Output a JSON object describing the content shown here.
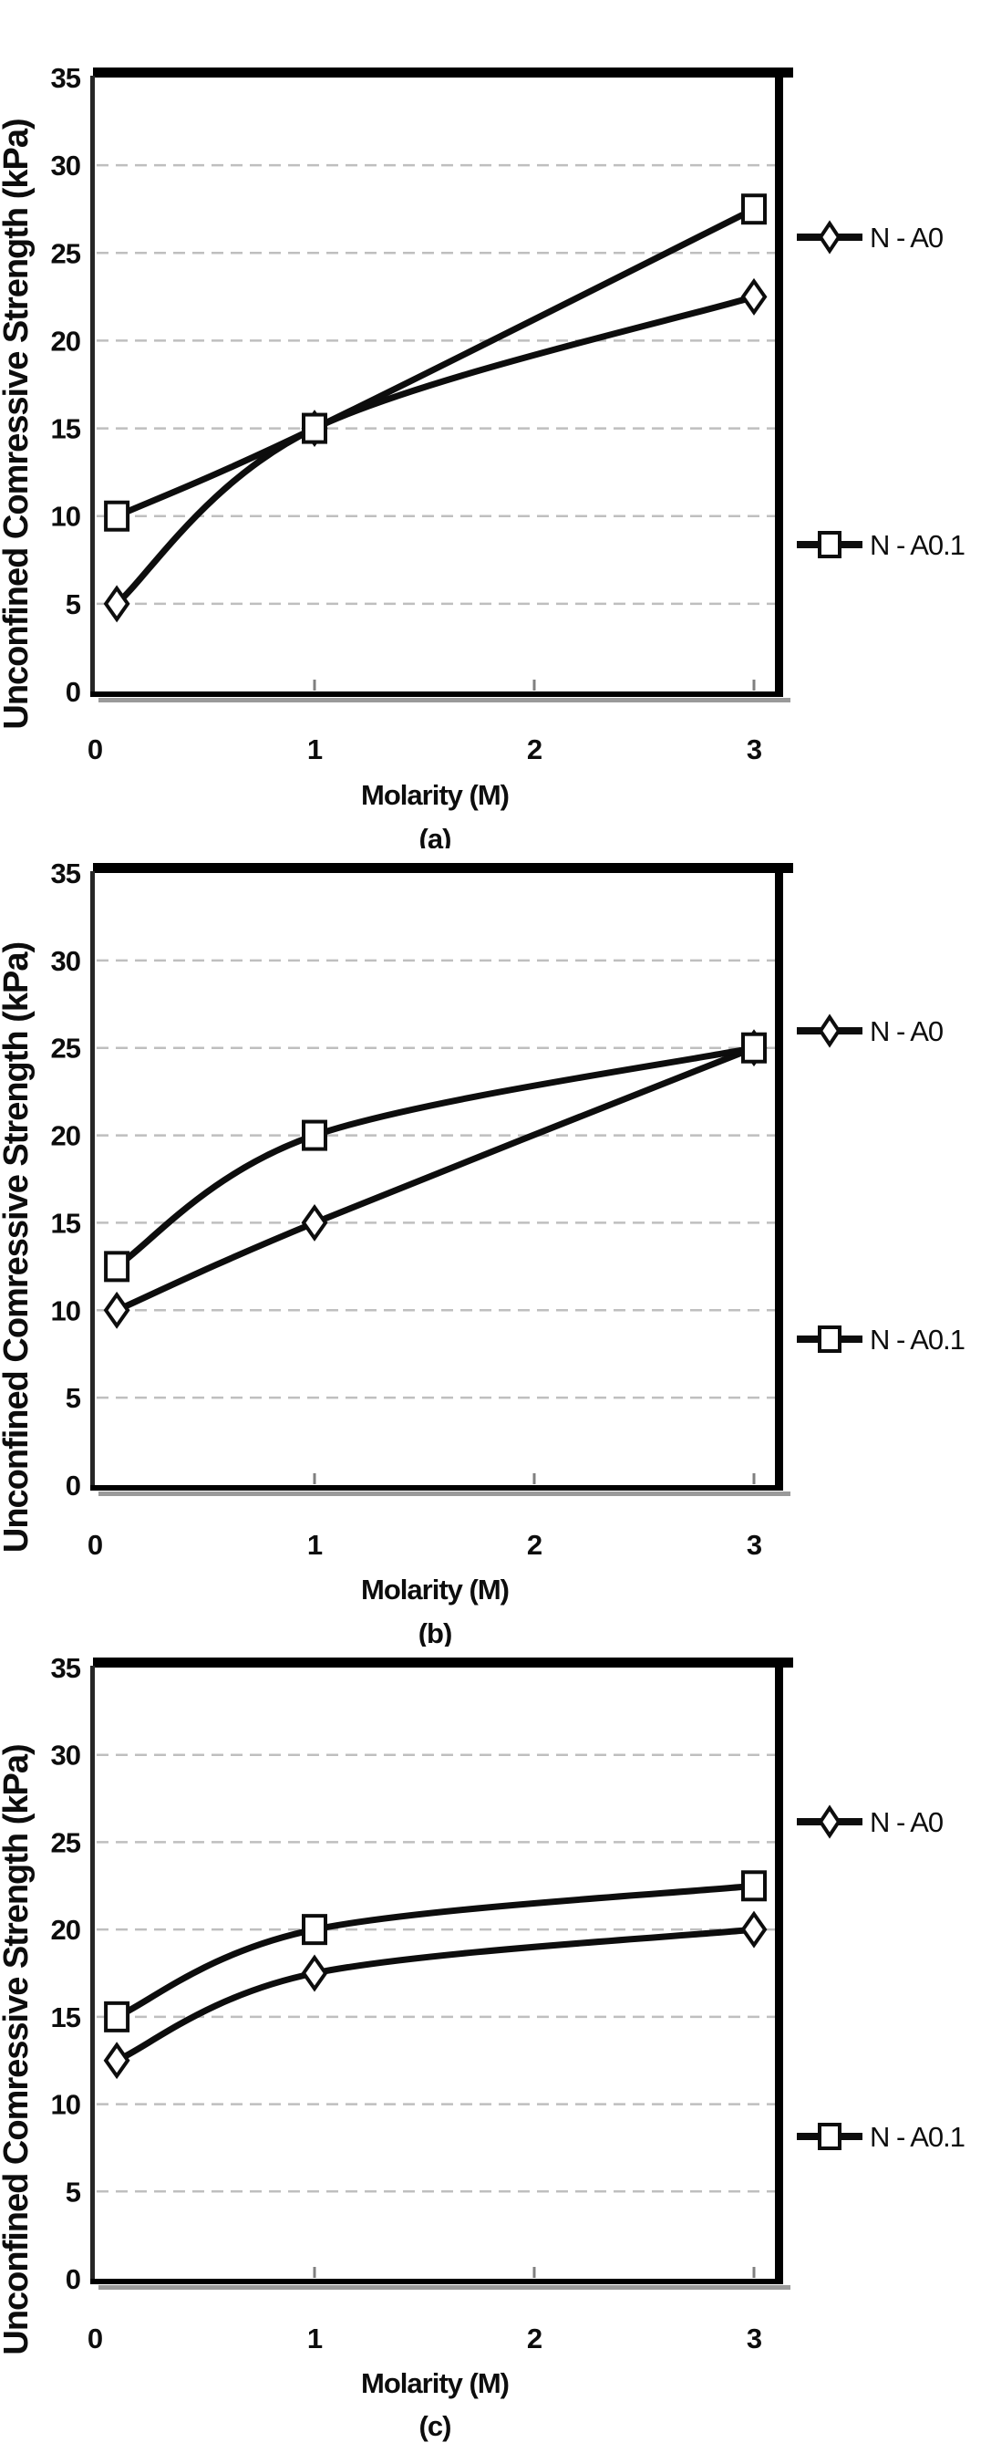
{
  "figure": {
    "background": "#ffffff",
    "line_color": "#0d0d0d",
    "grid_color": "#bfbfbf",
    "shadow_color": "#9a9a9a",
    "marker_fill": "#ffffff"
  },
  "chart_data": [
    {
      "id": "a",
      "type": "line",
      "caption": "(a)",
      "title": "",
      "xlabel": "Molarity (M)",
      "ylabel": "Unconfined Comressive Strength (kPa)",
      "x": [
        0.1,
        1,
        3
      ],
      "series": [
        {
          "name": "N - A0",
          "marker": "diamond",
          "values": [
            5,
            15,
            22.5
          ]
        },
        {
          "name": "N - A0.1",
          "marker": "square",
          "values": [
            10,
            15,
            27.5
          ]
        }
      ],
      "x_ticks": [
        0,
        1,
        2,
        3
      ],
      "y_ticks": [
        0,
        5,
        10,
        15,
        20,
        25,
        30,
        35
      ],
      "xlim": [
        0,
        3.1
      ],
      "ylim": [
        0,
        35
      ],
      "grid": "horizontal dashed",
      "legend_position": "right",
      "smoothed": true
    },
    {
      "id": "b",
      "type": "line",
      "caption": "(b)",
      "title": "",
      "xlabel": "Molarity (M)",
      "ylabel": "Unconfined Comressive Strength (kPa)",
      "x": [
        0.1,
        1,
        3
      ],
      "series": [
        {
          "name": "N - A0",
          "marker": "diamond",
          "values": [
            10,
            15,
            25
          ]
        },
        {
          "name": "N - A0.1",
          "marker": "square",
          "values": [
            12.5,
            20,
            25
          ]
        }
      ],
      "x_ticks": [
        0,
        1,
        2,
        3
      ],
      "y_ticks": [
        0,
        5,
        10,
        15,
        20,
        25,
        30,
        35
      ],
      "xlim": [
        0,
        3.1
      ],
      "ylim": [
        0,
        35
      ],
      "grid": "horizontal dashed",
      "legend_position": "right",
      "smoothed": true
    },
    {
      "id": "c",
      "type": "line",
      "caption": "(c)",
      "title": "",
      "xlabel": "Molarity (M)",
      "ylabel": "Unconfined Comressive Strength (kPa)",
      "x": [
        0.1,
        1,
        3
      ],
      "series": [
        {
          "name": "N - A0",
          "marker": "diamond",
          "values": [
            12.5,
            17.5,
            20
          ]
        },
        {
          "name": "N - A0.1",
          "marker": "square",
          "values": [
            15,
            20,
            22.5
          ]
        }
      ],
      "x_ticks": [
        0,
        1,
        2,
        3
      ],
      "y_ticks": [
        0,
        5,
        10,
        15,
        20,
        25,
        30,
        35
      ],
      "xlim": [
        0,
        3.1
      ],
      "ylim": [
        0,
        35
      ],
      "grid": "horizontal dashed",
      "legend_position": "right",
      "smoothed": true
    }
  ]
}
